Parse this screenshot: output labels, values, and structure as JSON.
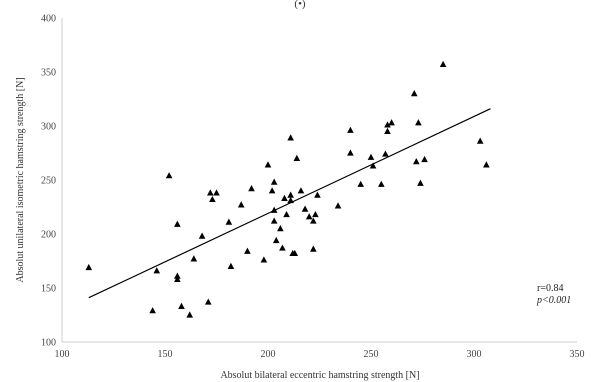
{
  "chart_data": {
    "type": "scatter",
    "title_fragment": "(•)",
    "xlabel": "Absolut bilateral eccentric hamstring strength [N]",
    "ylabel": "Absolut unilateral isometric hamstring strength [N]",
    "xlim": [
      100,
      350
    ],
    "ylim": [
      100,
      400
    ],
    "x_ticks": [
      "100",
      "150",
      "200",
      "250",
      "300",
      "350"
    ],
    "y_ticks": [
      "100",
      "150",
      "200",
      "250",
      "300",
      "350",
      "400"
    ],
    "grid": false,
    "marker": "triangle",
    "marker_color": "#000000",
    "trendline": {
      "x": [
        113,
        308
      ],
      "y": [
        141,
        316
      ]
    },
    "annotations": {
      "r": "r=0.84",
      "p": "p<0.001"
    },
    "points": [
      {
        "x": 113,
        "y": 169
      },
      {
        "x": 144,
        "y": 129
      },
      {
        "x": 146,
        "y": 166
      },
      {
        "x": 152,
        "y": 254
      },
      {
        "x": 156,
        "y": 209
      },
      {
        "x": 156,
        "y": 161
      },
      {
        "x": 156,
        "y": 158
      },
      {
        "x": 158,
        "y": 133
      },
      {
        "x": 162,
        "y": 125
      },
      {
        "x": 164,
        "y": 177
      },
      {
        "x": 168,
        "y": 198
      },
      {
        "x": 171,
        "y": 137
      },
      {
        "x": 172,
        "y": 238
      },
      {
        "x": 173,
        "y": 232
      },
      {
        "x": 175,
        "y": 238
      },
      {
        "x": 181,
        "y": 211
      },
      {
        "x": 182,
        "y": 170
      },
      {
        "x": 187,
        "y": 227
      },
      {
        "x": 190,
        "y": 184
      },
      {
        "x": 192,
        "y": 242
      },
      {
        "x": 198,
        "y": 176
      },
      {
        "x": 200,
        "y": 264
      },
      {
        "x": 202,
        "y": 240
      },
      {
        "x": 203,
        "y": 248
      },
      {
        "x": 203,
        "y": 222
      },
      {
        "x": 203,
        "y": 212
      },
      {
        "x": 204,
        "y": 194
      },
      {
        "x": 206,
        "y": 205
      },
      {
        "x": 207,
        "y": 187
      },
      {
        "x": 208,
        "y": 233
      },
      {
        "x": 209,
        "y": 218
      },
      {
        "x": 211,
        "y": 236
      },
      {
        "x": 211,
        "y": 231
      },
      {
        "x": 211,
        "y": 289
      },
      {
        "x": 212,
        "y": 182
      },
      {
        "x": 213,
        "y": 182
      },
      {
        "x": 214,
        "y": 270
      },
      {
        "x": 216,
        "y": 240
      },
      {
        "x": 218,
        "y": 223
      },
      {
        "x": 220,
        "y": 216
      },
      {
        "x": 222,
        "y": 212
      },
      {
        "x": 222,
        "y": 186
      },
      {
        "x": 223,
        "y": 218
      },
      {
        "x": 224,
        "y": 236
      },
      {
        "x": 234,
        "y": 226
      },
      {
        "x": 240,
        "y": 296
      },
      {
        "x": 240,
        "y": 275
      },
      {
        "x": 245,
        "y": 246
      },
      {
        "x": 250,
        "y": 271
      },
      {
        "x": 251,
        "y": 263
      },
      {
        "x": 255,
        "y": 246
      },
      {
        "x": 257,
        "y": 274
      },
      {
        "x": 258,
        "y": 295
      },
      {
        "x": 258,
        "y": 301
      },
      {
        "x": 260,
        "y": 303
      },
      {
        "x": 271,
        "y": 330
      },
      {
        "x": 272,
        "y": 267
      },
      {
        "x": 273,
        "y": 303
      },
      {
        "x": 274,
        "y": 247
      },
      {
        "x": 276,
        "y": 269
      },
      {
        "x": 285,
        "y": 357
      },
      {
        "x": 303,
        "y": 286
      },
      {
        "x": 306,
        "y": 264
      }
    ]
  }
}
